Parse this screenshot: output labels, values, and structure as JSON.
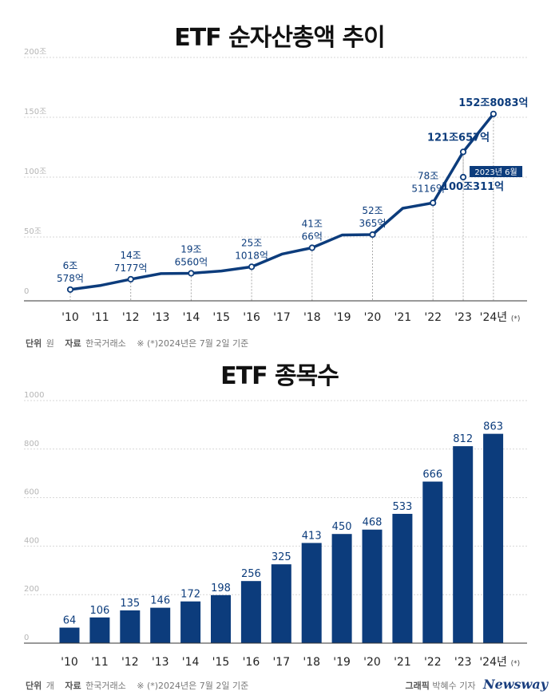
{
  "titles": {
    "line": "ETF 순자산총액 추이",
    "bar": "ETF 종목수"
  },
  "footnote_line": {
    "unit_label": "단위",
    "unit": "원",
    "source_label": "자료",
    "source": "한국거래소",
    "note": "※ (*)2024년은 7월 2일 기준"
  },
  "footnote_bar": {
    "unit_label": "단위",
    "unit": "개",
    "source_label": "자료",
    "source": "한국거래소",
    "note": "※ (*)2024년은 7월 2일 기준"
  },
  "credit": {
    "label": "그래픽",
    "author": "박혜수 기자",
    "brand": "Newsway"
  },
  "colors": {
    "series": "#0c3c7c",
    "grid": "#d7d7d7",
    "axis_tick": "#b5b5b5"
  },
  "chart_data": [
    {
      "type": "line",
      "title": "ETF 순자산총액 추이",
      "categories": [
        "'10",
        "'11",
        "'12",
        "'13",
        "'14",
        "'15",
        "'16",
        "'17",
        "'18",
        "'19",
        "'20",
        "'21",
        "'22",
        "'23",
        "'24년"
      ],
      "x_suffix": "(*)",
      "series": [
        {
          "values": [
            6.058,
            9.5,
            14.7,
            19.4,
            19.7,
            21.6,
            25.1,
            35.7,
            41.0,
            51.7,
            52.0,
            74.0,
            78.5,
            121.1,
            152.8
          ]
        }
      ],
      "extra_point": {
        "x": 13,
        "y": 100.0,
        "badge": "2023년 6월",
        "label": "100조311억"
      },
      "ylim": [
        0,
        200
      ],
      "yticks": [
        "0",
        "50조",
        "100조",
        "150조",
        "200조"
      ],
      "ytick_values": [
        0,
        50,
        100,
        150,
        200
      ],
      "grid": true,
      "annotations": [
        {
          "i": 0,
          "lines": [
            "6조",
            "578억"
          ],
          "pos": "above"
        },
        {
          "i": 2,
          "lines": [
            "14조",
            "7177억"
          ],
          "pos": "above"
        },
        {
          "i": 4,
          "lines": [
            "19조",
            "6560억"
          ],
          "pos": "above"
        },
        {
          "i": 6,
          "lines": [
            "25조",
            "1018억"
          ],
          "pos": "above"
        },
        {
          "i": 8,
          "lines": [
            "41조",
            "66억"
          ],
          "pos": "above"
        },
        {
          "i": 10,
          "lines": [
            "52조",
            "365억"
          ],
          "pos": "above"
        },
        {
          "i": 12,
          "lines": [
            "78조",
            "5116억"
          ],
          "pos": "left"
        },
        {
          "i": 13,
          "lines": [
            "121조657억"
          ],
          "pos": "left",
          "bold": true
        },
        {
          "i": 14,
          "lines": [
            "152조8083억"
          ],
          "pos": "above",
          "bold": true
        }
      ],
      "markers": [
        0,
        2,
        4,
        6,
        8,
        10,
        12,
        13,
        14
      ]
    },
    {
      "type": "bar",
      "title": "ETF 종목수",
      "categories": [
        "'10",
        "'11",
        "'12",
        "'13",
        "'14",
        "'15",
        "'16",
        "'17",
        "'18",
        "'19",
        "'20",
        "'21",
        "'22",
        "'23",
        "'24년"
      ],
      "x_suffix": "(*)",
      "series": [
        {
          "values": [
            64,
            106,
            135,
            146,
            172,
            198,
            256,
            325,
            413,
            450,
            468,
            533,
            666,
            812,
            863
          ]
        }
      ],
      "ylim": [
        0,
        1000
      ],
      "yticks": [
        "0",
        "200",
        "400",
        "600",
        "800",
        "1000"
      ],
      "ytick_values": [
        0,
        200,
        400,
        600,
        800,
        1000
      ],
      "grid": true
    }
  ]
}
